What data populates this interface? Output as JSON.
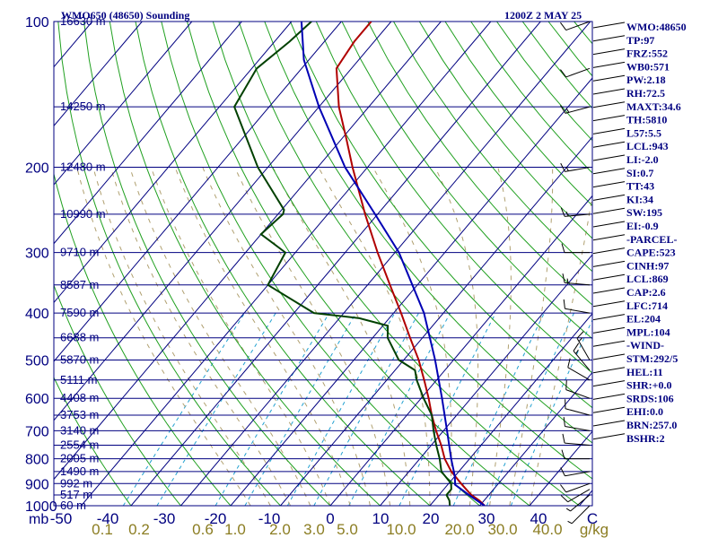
{
  "header": {
    "station": "WMO650 (48650) Sounding",
    "time": "1200Z  2 MAY 25"
  },
  "colors": {
    "frame": "#000080",
    "temperature": "#b00000",
    "dewpoint": "#004000",
    "parcel": "#0000b4",
    "dry_adiabat": "#20a020",
    "moist_adiabat": "#b0a070",
    "mixing_ratio": "#20a0d0",
    "isotherm": "#000080",
    "mixing_ratio_label": "#8b7d22"
  },
  "chart_data": {
    "type": "skew-t log-p sounding",
    "y_axis": {
      "label_corner": "mb",
      "scale": "log",
      "range_hpa": [
        1000,
        100
      ],
      "ticks": [
        100,
        200,
        300,
        400,
        500,
        600,
        700,
        800,
        900,
        1000
      ]
    },
    "x_axis": {
      "ticks_c": [
        -50,
        -40,
        -30,
        -20,
        -10,
        0,
        10,
        20,
        30,
        40
      ],
      "end_label": "C"
    },
    "levels": [
      {
        "p": 100,
        "h": "16630 m"
      },
      {
        "p": 150,
        "h": "14250 m"
      },
      {
        "p": 200,
        "h": "12480 m"
      },
      {
        "p": 250,
        "h": "10990 m"
      },
      {
        "p": 300,
        "h": "9710 m"
      },
      {
        "p": 350,
        "h": "8587 m"
      },
      {
        "p": 400,
        "h": "7590 m"
      },
      {
        "p": 450,
        "h": "6688 m"
      },
      {
        "p": 500,
        "h": "5870 m"
      },
      {
        "p": 550,
        "h": "5111 m"
      },
      {
        "p": 600,
        "h": "4408 m"
      },
      {
        "p": 650,
        "h": "3753 m"
      },
      {
        "p": 700,
        "h": "3140 m"
      },
      {
        "p": 750,
        "h": "2554 m"
      },
      {
        "p": 800,
        "h": "2005 m"
      },
      {
        "p": 850,
        "h": "1490 m"
      },
      {
        "p": 900,
        "h": "992 m"
      },
      {
        "p": 950,
        "h": "517 m"
      },
      {
        "p": 1000,
        "h": "60 m"
      }
    ],
    "mixing_ratio_labels": [
      "0.1",
      "0.2",
      "0.6",
      "1.0",
      "2.0",
      "3.0",
      "5.0",
      "10.0",
      "20.0",
      "30.0",
      "40.0",
      "g/kg"
    ],
    "mixing_ratio_values": [
      0.1,
      0.2,
      0.6,
      1,
      2,
      3,
      5,
      10,
      20,
      30,
      40
    ],
    "series": [
      {
        "key": "temperature",
        "points": [
          [
            1000,
            31
          ],
          [
            975,
            29
          ],
          [
            950,
            26.5
          ],
          [
            925,
            24.5
          ],
          [
            900,
            22.5
          ],
          [
            850,
            18.5
          ],
          [
            800,
            15
          ],
          [
            750,
            12
          ],
          [
            700,
            8.5
          ],
          [
            650,
            5
          ],
          [
            600,
            1.5
          ],
          [
            550,
            -2.5
          ],
          [
            500,
            -7
          ],
          [
            450,
            -12.5
          ],
          [
            400,
            -18.5
          ],
          [
            350,
            -25.5
          ],
          [
            300,
            -33.5
          ],
          [
            250,
            -42.5
          ],
          [
            200,
            -53
          ],
          [
            175,
            -59
          ],
          [
            150,
            -66
          ],
          [
            125,
            -73
          ],
          [
            110,
            -74
          ],
          [
            100,
            -74
          ]
        ]
      },
      {
        "key": "dewpoint",
        "points": [
          [
            1000,
            24
          ],
          [
            975,
            23
          ],
          [
            950,
            21.5
          ],
          [
            925,
            21.5
          ],
          [
            900,
            20.5
          ],
          [
            850,
            16.5
          ],
          [
            800,
            14
          ],
          [
            750,
            11
          ],
          [
            700,
            8
          ],
          [
            650,
            5
          ],
          [
            600,
            0.5
          ],
          [
            550,
            -4
          ],
          [
            525,
            -6
          ],
          [
            500,
            -11
          ],
          [
            450,
            -17
          ],
          [
            425,
            -19
          ],
          [
            410,
            -26
          ],
          [
            400,
            -36
          ],
          [
            350,
            -50
          ],
          [
            300,
            -52
          ],
          [
            275,
            -60
          ],
          [
            250,
            -59
          ],
          [
            245,
            -59.5
          ],
          [
            200,
            -72
          ],
          [
            150,
            -87
          ],
          [
            125,
            -89
          ],
          [
            110,
            -87
          ],
          [
            100,
            -86
          ]
        ]
      },
      {
        "key": "parcel",
        "points": [
          [
            1000,
            31
          ],
          [
            950,
            26
          ],
          [
            905,
            21.5
          ],
          [
            869,
            20
          ],
          [
            800,
            16.3
          ],
          [
            700,
            10.7
          ],
          [
            600,
            4.2
          ],
          [
            500,
            -3.7
          ],
          [
            400,
            -13.9
          ],
          [
            300,
            -29.2
          ],
          [
            250,
            -40.5
          ],
          [
            200,
            -54.5
          ],
          [
            150,
            -70
          ],
          [
            120,
            -81
          ],
          [
            100,
            -88
          ]
        ]
      }
    ],
    "wind_barbs": [
      {
        "p": 1000,
        "dir": 225,
        "kt": 5
      },
      {
        "p": 950,
        "dir": 230,
        "kt": 5
      },
      {
        "p": 925,
        "dir": 240,
        "kt": 10
      },
      {
        "p": 900,
        "dir": 250,
        "kt": 10
      },
      {
        "p": 850,
        "dir": 260,
        "kt": 10
      },
      {
        "p": 800,
        "dir": 270,
        "kt": 10
      },
      {
        "p": 750,
        "dir": 275,
        "kt": 10
      },
      {
        "p": 700,
        "dir": 280,
        "kt": 10
      },
      {
        "p": 650,
        "dir": 285,
        "kt": 10
      },
      {
        "p": 600,
        "dir": 290,
        "kt": 10
      },
      {
        "p": 550,
        "dir": 300,
        "kt": 10
      },
      {
        "p": 525,
        "dir": 320,
        "kt": 15
      },
      {
        "p": 500,
        "dir": 330,
        "kt": 15
      },
      {
        "p": 400,
        "dir": 280,
        "kt": 10
      },
      {
        "p": 350,
        "dir": 275,
        "kt": 15
      },
      {
        "p": 300,
        "dir": 270,
        "kt": 10
      },
      {
        "p": 250,
        "dir": 265,
        "kt": 15
      },
      {
        "p": 200,
        "dir": 260,
        "kt": 15
      },
      {
        "p": 150,
        "dir": 255,
        "kt": 15
      },
      {
        "p": 125,
        "dir": 250,
        "kt": 10
      },
      {
        "p": 100,
        "dir": 250,
        "kt": 10
      }
    ]
  },
  "indices": [
    "WMO:48650",
    "TP:97",
    "FRZ:552",
    "WB0:571",
    "PW:2.18",
    "RH:72.5",
    "MAXT:34.6",
    "TH:5810",
    "L57:5.5",
    "LCL:943",
    "LI:-2.0",
    "SI:0.7",
    "TT:43",
    "KI:34",
    "SW:195",
    "EI:-0.9",
    "-PARCEL-",
    "CAPE:523",
    "CINH:97",
    "LCL:869",
    "CAP:2.6",
    "LFC:714",
    "EL:204",
    "MPL:104",
    "-WIND-",
    "STM:292/5",
    "HEL:11",
    "SHR:+0.0",
    "SRDS:106",
    "EHI:0.0",
    "BRN:257.0",
    "BSHR:2"
  ]
}
